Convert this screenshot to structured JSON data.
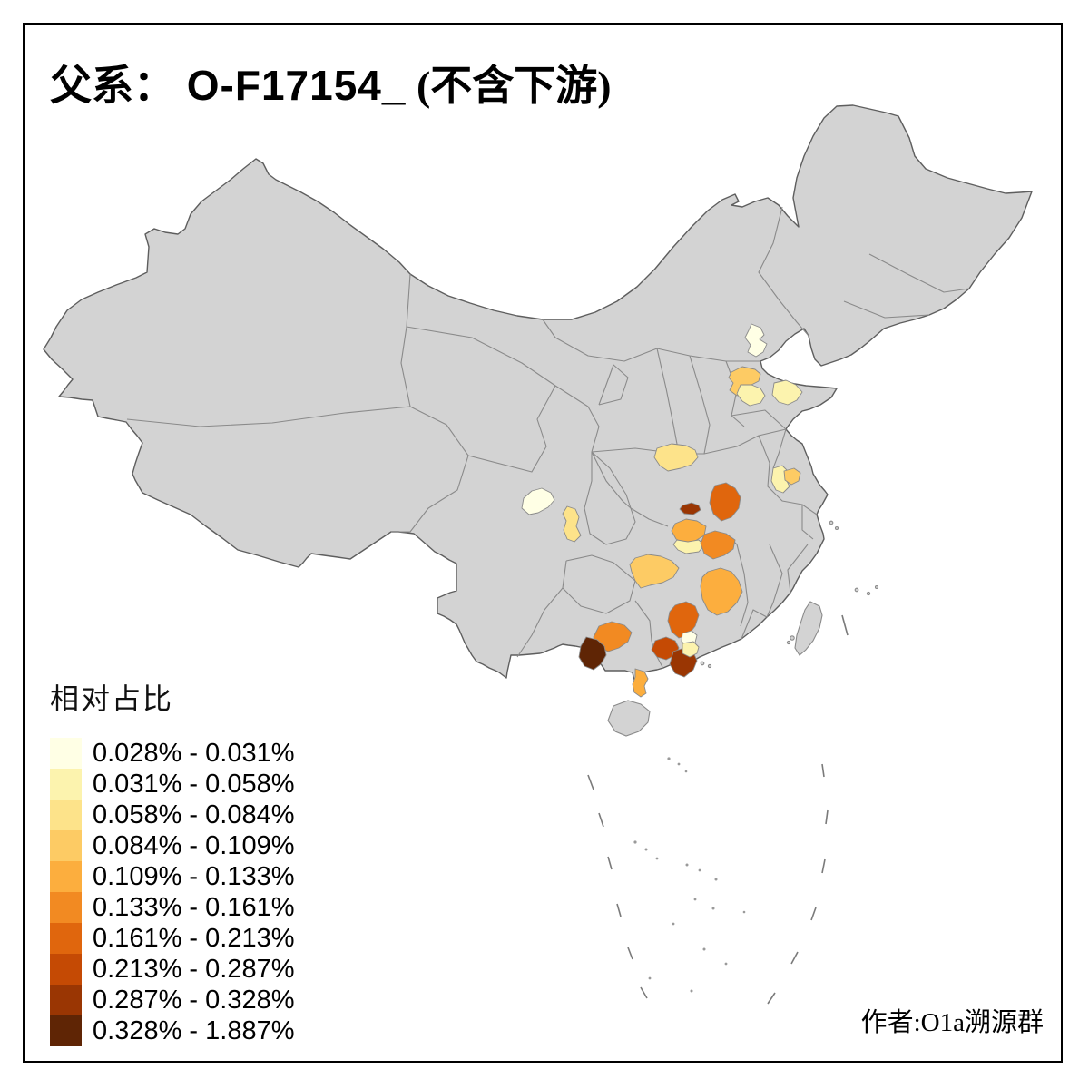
{
  "title": {
    "prefix": "父系：",
    "id": "O-F17154_",
    "suffix": " (不含下游)"
  },
  "legend": {
    "title": "相对占比",
    "items": [
      {
        "label": "0.028% - 0.031%",
        "color": "#FFFFE5"
      },
      {
        "label": "0.031% - 0.058%",
        "color": "#FCF3AE"
      },
      {
        "label": "0.058% - 0.084%",
        "color": "#FDE38A"
      },
      {
        "label": "0.084% - 0.109%",
        "color": "#FDCB64"
      },
      {
        "label": "0.109% - 0.133%",
        "color": "#FCAE3E"
      },
      {
        "label": "0.133% - 0.161%",
        "color": "#F28A22"
      },
      {
        "label": "0.161% - 0.213%",
        "color": "#E0660D"
      },
      {
        "label": "0.213% - 0.287%",
        "color": "#C54A04"
      },
      {
        "label": "0.287% - 0.328%",
        "color": "#9A3603"
      },
      {
        "label": "0.328% - 1.887%",
        "color": "#5F2505"
      }
    ]
  },
  "attribution": "作者:O1a溯源群",
  "map": {
    "base_fill": "#D3D3D3",
    "sea_fill": "#FFFFFF",
    "national_border": "#5E5E5E",
    "province_border": "#8A8A8A",
    "regions": [
      {
        "id": "region-beijing",
        "bin": 1
      },
      {
        "id": "region-hebei-south",
        "bin": 4
      },
      {
        "id": "region-hebei-pale",
        "bin": 2
      },
      {
        "id": "region-shandong-west",
        "bin": 2
      },
      {
        "id": "region-henan",
        "bin": 3
      },
      {
        "id": "region-chengdu",
        "bin": 1
      },
      {
        "id": "region-sichuan-south",
        "bin": 3
      },
      {
        "id": "region-hubei-small",
        "bin": 9
      },
      {
        "id": "region-hubei-east",
        "bin": 7
      },
      {
        "id": "region-anhui-pale",
        "bin": 2
      },
      {
        "id": "region-nanjing",
        "bin": 4
      },
      {
        "id": "region-hunan-north",
        "bin": 5
      },
      {
        "id": "region-hunan-pale",
        "bin": 2
      },
      {
        "id": "region-hunan-northeast",
        "bin": 6
      },
      {
        "id": "region-hunan-west",
        "bin": 4
      },
      {
        "id": "region-hunan-south",
        "bin": 5
      },
      {
        "id": "region-guangdong-north",
        "bin": 7
      },
      {
        "id": "region-guangxi-central",
        "bin": 6
      },
      {
        "id": "region-guangxi-southwest",
        "bin": 10
      },
      {
        "id": "region-guangdong-west",
        "bin": 8
      },
      {
        "id": "region-guangdong-mid",
        "bin": 9
      },
      {
        "id": "region-guangzhou-cream",
        "bin": 1
      },
      {
        "id": "region-guangzhou-pale",
        "bin": 2
      },
      {
        "id": "region-zhanjiang",
        "bin": 5
      }
    ]
  }
}
